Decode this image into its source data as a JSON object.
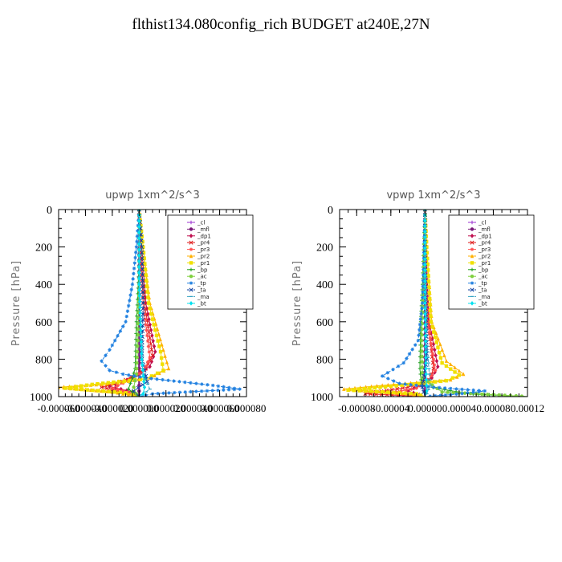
{
  "title": "flthist134.080config_rich  BUDGET at240E,27N",
  "chart_data": [
    {
      "type": "line",
      "title": "upwp   1xm^2/s^3",
      "ylabel": "Pressure [hPa]",
      "ylim": [
        1000,
        0
      ],
      "xlim": [
        -6e-05,
        8e-05
      ],
      "yticks": [
        0,
        200,
        400,
        600,
        800,
        1000
      ],
      "xtick_labels": [
        "-0.000060",
        "-0.000040",
        "-0.000020",
        "0.000000",
        "0.000020",
        "0.000040",
        "0.000060",
        "0.000080"
      ],
      "xtick_values": [
        -6e-05,
        -4e-05,
        -2e-05,
        0.0,
        2e-05,
        4e-05,
        6e-05,
        8e-05
      ],
      "legend_position": "top-right",
      "series": [
        {
          "name": "_cl",
          "color": "#9b30d0",
          "x": [
            0,
            0,
            0,
            0
          ],
          "y": [
            0,
            300,
            700,
            1000
          ]
        },
        {
          "name": "_mfl",
          "color": "#7a1a7a",
          "x": [
            0,
            0,
            0,
            0
          ],
          "y": [
            0,
            300,
            700,
            1000
          ]
        },
        {
          "name": "_dp1",
          "color": "#c01050",
          "x": [
            0,
            2e-06,
            5e-06,
            1.2e-05,
            8e-06,
            -5e-06,
            -2.2e-05,
            -5e-06,
            0
          ],
          "y": [
            0,
            200,
            500,
            760,
            840,
            900,
            945,
            975,
            1000
          ]
        },
        {
          "name": "_pr4",
          "color": "#e02020",
          "x": [
            0,
            1e-06,
            4e-06,
            1e-05,
            5e-06,
            -1e-05,
            -2.8e-05,
            -8e-06,
            0
          ],
          "y": [
            0,
            200,
            500,
            780,
            850,
            910,
            950,
            980,
            1000
          ]
        },
        {
          "name": "_pr3",
          "color": "#ff5050",
          "x": [
            0,
            1e-06,
            3e-06,
            8e-06,
            4e-06,
            -8e-06,
            -2e-05,
            -4e-06,
            0
          ],
          "y": [
            0,
            200,
            500,
            790,
            860,
            915,
            955,
            982,
            1000
          ]
        },
        {
          "name": "_pr2",
          "color": "#ffb000",
          "x": [
            0,
            3e-06,
            8e-06,
            1.8e-05,
            2.2e-05,
            8e-06,
            -2e-05,
            -6e-05,
            -2e-05,
            0
          ],
          "y": [
            0,
            200,
            500,
            750,
            850,
            900,
            930,
            950,
            975,
            1000
          ]
        },
        {
          "name": "_pr1",
          "color": "#f0e000",
          "x": [
            0,
            3e-06,
            7e-06,
            1.6e-05,
            1.8e-05,
            5e-06,
            -3.5e-05,
            -5.5e-05,
            -1e-05,
            0
          ],
          "y": [
            0,
            200,
            500,
            760,
            860,
            905,
            935,
            955,
            980,
            1000
          ]
        },
        {
          "name": "_bp",
          "color": "#20a020",
          "x": [
            0,
            0,
            -2e-06,
            -3e-06,
            -5e-06,
            -8e-06,
            -2e-06,
            0
          ],
          "y": [
            0,
            300,
            600,
            850,
            900,
            960,
            990,
            1000
          ]
        },
        {
          "name": "_ac",
          "color": "#80d040",
          "x": [
            0,
            0,
            -1e-06,
            -2e-06,
            -4e-06,
            -2e-06,
            0
          ],
          "y": [
            0,
            400,
            700,
            880,
            950,
            985,
            1000
          ]
        },
        {
          "name": "_tp",
          "color": "#2080e0",
          "x": [
            0,
            -2e-06,
            -5e-06,
            -1e-05,
            -2.2e-05,
            -2.8e-05,
            -2.2e-05,
            -1.2e-05,
            5e-06,
            5.5e-05,
            7.5e-05,
            1e-05,
            0
          ],
          "y": [
            0,
            200,
            400,
            600,
            750,
            810,
            860,
            880,
            900,
            940,
            960,
            985,
            1000
          ]
        },
        {
          "name": "_ta",
          "color": "#1040a0",
          "x": [
            0,
            1e-06,
            2e-06,
            3e-06,
            2e-06,
            6e-06,
            -4e-06,
            0
          ],
          "y": [
            0,
            100,
            200,
            500,
            800,
            920,
            970,
            1000
          ]
        },
        {
          "name": "_ma",
          "color": "#30a0c0",
          "x": [
            0,
            0,
            1e-06,
            3e-06,
            8e-06,
            2e-06,
            0
          ],
          "y": [
            0,
            300,
            600,
            880,
            960,
            990,
            1000
          ]
        },
        {
          "name": "_bt",
          "color": "#00e0f0",
          "x": [
            0,
            0,
            2e-06,
            4e-06,
            3e-06,
            0
          ],
          "y": [
            0,
            400,
            800,
            950,
            985,
            1000
          ]
        }
      ]
    },
    {
      "type": "line",
      "title": "vpwp   1xm^2/s^3",
      "ylabel": "Pressure [hPa]",
      "ylim": [
        1000,
        0
      ],
      "xlim": [
        -0.0001,
        0.00012
      ],
      "yticks": [
        0,
        200,
        400,
        600,
        800,
        1000
      ],
      "xtick_labels": [
        "-0.00008",
        "-0.00004",
        "0.00000",
        "0.00004",
        "0.00008",
        "0.00012"
      ],
      "xtick_values": [
        -8e-05,
        -4e-05,
        0.0,
        4e-05,
        8e-05,
        0.00012
      ],
      "legend_position": "top-right",
      "series": [
        {
          "name": "_cl",
          "color": "#9b30d0",
          "x": [
            0,
            0,
            0,
            0
          ],
          "y": [
            0,
            300,
            700,
            1000
          ]
        },
        {
          "name": "_mfl",
          "color": "#7a1a7a",
          "x": [
            0,
            0,
            0,
            0
          ],
          "y": [
            0,
            300,
            700,
            1000
          ]
        },
        {
          "name": "_dp1",
          "color": "#c01050",
          "x": [
            0,
            1e-06,
            5e-06,
            1.5e-05,
            8e-06,
            -6e-06,
            -2e-05,
            0
          ],
          "y": [
            0,
            200,
            600,
            840,
            900,
            940,
            970,
            1000
          ]
        },
        {
          "name": "_pr4",
          "color": "#e02020",
          "x": [
            0,
            1e-06,
            4e-06,
            1e-05,
            5e-06,
            -2e-05,
            -7e-05,
            0
          ],
          "y": [
            0,
            200,
            600,
            850,
            910,
            950,
            985,
            1000
          ]
        },
        {
          "name": "_pr3",
          "color": "#ff5050",
          "x": [
            0,
            1e-06,
            3e-06,
            1.2e-05,
            3e-06,
            -1e-05,
            -4e-05,
            0
          ],
          "y": [
            0,
            200,
            600,
            860,
            915,
            955,
            980,
            1000
          ]
        },
        {
          "name": "_pr2",
          "color": "#ffb000",
          "x": [
            0,
            2e-06,
            8e-06,
            2.5e-05,
            4.5e-05,
            3e-05,
            -5e-05,
            -9.5e-05,
            -2e-05,
            0
          ],
          "y": [
            0,
            200,
            600,
            810,
            880,
            910,
            940,
            960,
            985,
            1000
          ]
        },
        {
          "name": "_pr1",
          "color": "#f0e000",
          "x": [
            0,
            2e-06,
            7e-06,
            2e-05,
            4e-05,
            2.5e-05,
            -4e-05,
            -9e-05,
            -1e-05,
            0
          ],
          "y": [
            0,
            200,
            600,
            820,
            885,
            915,
            945,
            965,
            985,
            1000
          ]
        },
        {
          "name": "_bp",
          "color": "#20a020",
          "x": [
            0,
            -3e-06,
            -5e-06,
            -6e-06,
            -4e-06,
            5e-05,
            0.00012
          ],
          "y": [
            0,
            400,
            600,
            850,
            940,
            985,
            1000
          ]
        },
        {
          "name": "_ac",
          "color": "#80d040",
          "x": [
            0,
            -2e-06,
            -4e-06,
            -3e-06,
            2e-05,
            0.00012
          ],
          "y": [
            0,
            400,
            700,
            900,
            975,
            1000
          ]
        },
        {
          "name": "_tp",
          "color": "#2080e0",
          "x": [
            0,
            -1e-06,
            -3e-06,
            -8e-06,
            -2.5e-05,
            -5e-05,
            -3e-05,
            1e-05,
            7e-05,
            3e-05,
            0
          ],
          "y": [
            0,
            200,
            500,
            700,
            820,
            890,
            930,
            950,
            970,
            990,
            1000
          ]
        },
        {
          "name": "_ta",
          "color": "#1040a0",
          "x": [
            0,
            0,
            1e-06,
            2e-06,
            -3e-06,
            0
          ],
          "y": [
            0,
            200,
            500,
            800,
            950,
            1000
          ]
        },
        {
          "name": "_ma",
          "color": "#30a0c0",
          "x": [
            0,
            0,
            2e-06,
            6e-06,
            2e-06,
            0
          ],
          "y": [
            0,
            300,
            700,
            940,
            985,
            1000
          ]
        },
        {
          "name": "_bt",
          "color": "#00e0f0",
          "x": [
            0,
            0,
            1e-06,
            2e-06,
            0
          ],
          "y": [
            0,
            500,
            850,
            970,
            1000
          ]
        }
      ]
    }
  ]
}
